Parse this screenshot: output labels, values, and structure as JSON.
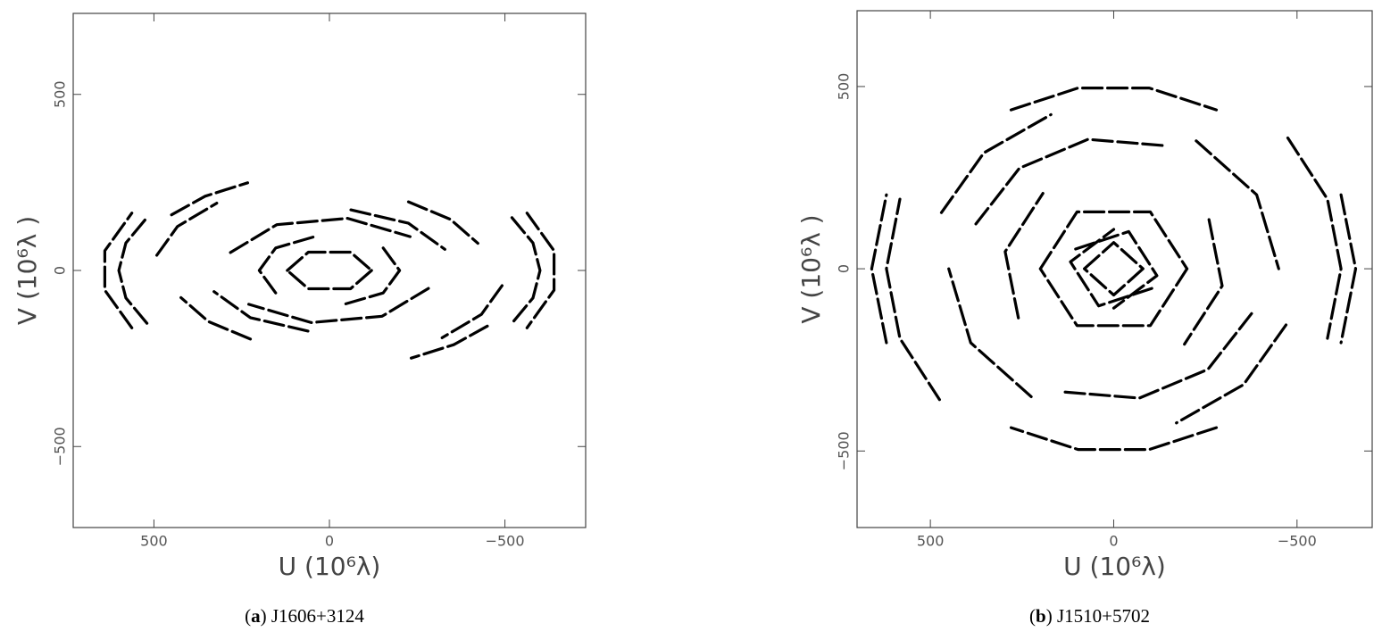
{
  "chart_data": [
    {
      "type": "line",
      "xlabel": "U (10⁶λ)",
      "ylabel": "V (10⁶λ )",
      "caption_parts": [
        "(",
        "a",
        ") J1606+3124"
      ],
      "xlim": [
        730,
        -730
      ],
      "ylim": [
        -730,
        730
      ],
      "xticks": [
        500,
        0,
        {
          "value": -500,
          "label": "−500"
        }
      ],
      "yticks": [
        {
          "value": -500,
          "label": "−500"
        },
        0,
        500
      ],
      "color": "#000000",
      "series": [
        {
          "x": [
            520,
            580,
            600,
            580,
            520,
            null,
            -520,
            -580,
            -600,
            -580,
            -520
          ],
          "values": [
            -150,
            -78,
            0,
            78,
            150,
            null,
            150,
            78,
            0,
            -78,
            -150
          ]
        },
        {
          "x": [
            563,
            640,
            640,
            563,
            null,
            -563,
            -640,
            -640,
            -563
          ],
          "values": [
            -163,
            -56,
            56,
            163,
            null,
            163,
            56,
            -56,
            -163
          ]
        },
        {
          "x": [
            492,
            433,
            321,
            null,
            -492,
            -433,
            -321
          ],
          "values": [
            43,
            125,
            191,
            null,
            -43,
            -125,
            -191
          ]
        },
        {
          "x": [
            225,
            345,
            423,
            null,
            -225,
            -345,
            -423
          ],
          "values": [
            -195,
            -145,
            -77,
            null,
            195,
            145,
            77
          ]
        },
        {
          "x": [
            282,
            150,
            -52,
            -230,
            null,
            -282,
            -150,
            52,
            230
          ],
          "values": [
            51,
            130,
            148,
            96,
            null,
            -51,
            -130,
            -148,
            -96
          ]
        },
        {
          "x": [
            153,
            200,
            153,
            35,
            null,
            -153,
            -200,
            -153,
            -35
          ],
          "values": [
            -64,
            0,
            64,
            98,
            null,
            64,
            0,
            -64,
            -98
          ]
        },
        {
          "x": [
            120,
            60,
            -60,
            -120,
            null,
            -120,
            -60,
            60,
            120
          ],
          "values": [
            0,
            52,
            52,
            0,
            null,
            0,
            -52,
            -52,
            0
          ]
        },
        {
          "x": [
            61,
            225,
            329,
            null,
            -61,
            -225,
            -329
          ],
          "values": [
            -172,
            -134,
            -60,
            null,
            172,
            134,
            60
          ]
        },
        {
          "x": [
            450,
            354,
            233,
            null,
            -450,
            -354,
            -233
          ],
          "values": [
            158,
            211,
            249,
            null,
            -158,
            -211,
            -249
          ]
        }
      ]
    },
    {
      "type": "line",
      "xlabel": "U (10⁶λ)",
      "ylabel": "V (10⁶λ )",
      "caption_parts": [
        "(",
        "b",
        ") J1510+5702"
      ],
      "xlim": [
        700,
        -705
      ],
      "ylim": [
        -710,
        708
      ],
      "xticks": [
        500,
        0,
        {
          "value": -500,
          "label": "−500"
        }
      ],
      "yticks": [
        {
          "value": -500,
          "label": "−500"
        },
        0,
        500
      ],
      "color": "#000000",
      "series": [
        {
          "x": [
            280,
            97,
            -97,
            -280,
            null,
            -280,
            -97,
            97,
            280
          ],
          "values": [
            436,
            496,
            496,
            436,
            null,
            -436,
            -496,
            -496,
            -436
          ]
        },
        {
          "x": [
            -475,
            -583,
            -620,
            -583,
            null,
            475,
            583,
            620,
            583
          ],
          "values": [
            359,
            191,
            0,
            -191,
            null,
            -359,
            -191,
            0,
            191
          ]
        },
        {
          "x": [
            -470,
            -354,
            -171,
            null,
            470,
            354,
            171
          ],
          "values": [
            -154,
            -318,
            -423,
            null,
            154,
            318,
            423
          ]
        },
        {
          "x": [
            376,
            257,
            70,
            -137,
            null,
            -376,
            -257,
            -70,
            137
          ],
          "values": [
            123,
            276,
            355,
            338,
            null,
            -123,
            -276,
            -355,
            -338
          ]
        },
        {
          "x": [
            -260,
            -296,
            -193,
            null,
            260,
            296,
            193
          ],
          "values": [
            135,
            -47,
            -207,
            null,
            -135,
            47,
            207
          ]
        },
        {
          "x": [
            200,
            100,
            -100,
            -200,
            null,
            -200,
            -100,
            100,
            200
          ],
          "values": [
            0,
            156,
            156,
            0,
            null,
            0,
            -156,
            -156,
            0
          ]
        },
        {
          "x": [
            104,
            -41,
            -118,
            0,
            null,
            -104,
            41,
            118,
            0
          ],
          "values": [
            54,
            102,
            -19,
            -108,
            null,
            -54,
            -102,
            19,
            108
          ]
        },
        {
          "x": [
            80,
            0,
            -80,
            null,
            -80,
            0,
            80
          ],
          "values": [
            0,
            72,
            0,
            null,
            0,
            -72,
            0
          ]
        },
        {
          "x": [
            225,
            390,
            450,
            null,
            -225,
            -390,
            -450
          ],
          "values": [
            -351,
            -203,
            0,
            null,
            351,
            203,
            0
          ]
        },
        {
          "x": [
            620,
            660,
            620,
            null,
            -620,
            -660,
            -620
          ],
          "values": [
            -203,
            0,
            203,
            null,
            203,
            0,
            -203
          ]
        }
      ]
    }
  ]
}
